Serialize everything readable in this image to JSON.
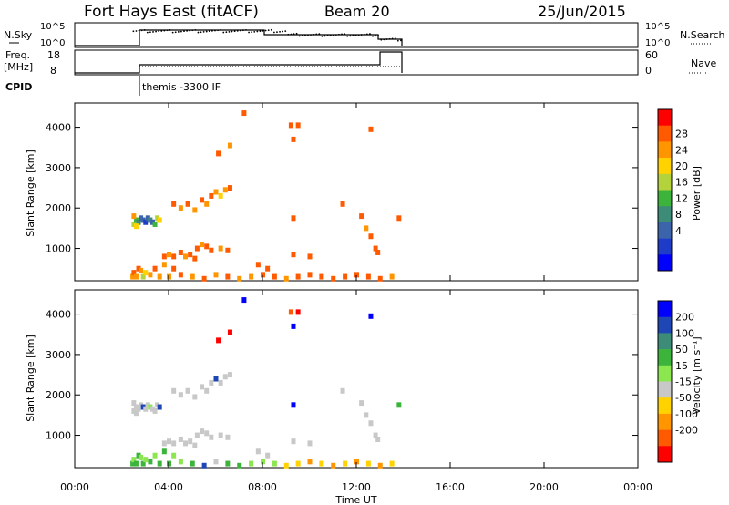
{
  "header": {
    "site": "Fort Hays East (fitACF)",
    "beam": "Beam 20",
    "date": "25/Jun/2015"
  },
  "params": {
    "nsky_label": "N.Sky",
    "nsky_ticks": [
      "10^5",
      "10^0"
    ],
    "nsearch_label": "N.Search",
    "nsearch_ticks": [
      "10^5",
      "10^0"
    ],
    "freq_label": [
      "Freq.",
      "[MHz]"
    ],
    "freq_ticks": [
      "18",
      "8"
    ],
    "nave_label": "Nave",
    "nave_ticks": [
      "60",
      "0"
    ],
    "cpid_label": "CPID",
    "cpid_text": "themis -3300 IF"
  },
  "chart_data": [
    {
      "type": "heatmap",
      "name": "power",
      "ylabel": "Slant Range [km]",
      "xlabel": "",
      "xlim": [
        0,
        24
      ],
      "ylim": [
        200,
        4600
      ],
      "y_ticks": [
        1000,
        2000,
        3000,
        4000
      ],
      "colorbar": {
        "label": "Power [dB]",
        "ticks": [
          "28",
          "24",
          "20",
          "16",
          "12",
          "8",
          "4"
        ],
        "colors": [
          "#ff0000",
          "#ff5a00",
          "#ff9600",
          "#ffd200",
          "#b4d23c",
          "#3cb43c",
          "#3c8c78",
          "#3c64aa",
          "#1e3cc8",
          "#0000ff"
        ]
      },
      "cells": [
        [
          2.45,
          300,
          2
        ],
        [
          2.5,
          400,
          1
        ],
        [
          2.6,
          300,
          2
        ],
        [
          2.7,
          500,
          1
        ],
        [
          2.8,
          450,
          2
        ],
        [
          2.9,
          300,
          4
        ],
        [
          3.0,
          400,
          3
        ],
        [
          3.2,
          350,
          2
        ],
        [
          3.4,
          500,
          1
        ],
        [
          3.6,
          300,
          2
        ],
        [
          2.5,
          1600,
          4
        ],
        [
          2.6,
          1700,
          5
        ],
        [
          2.7,
          1650,
          6
        ],
        [
          2.8,
          1750,
          7
        ],
        [
          2.9,
          1700,
          7
        ],
        [
          3.0,
          1650,
          8
        ],
        [
          3.1,
          1750,
          7
        ],
        [
          3.2,
          1700,
          6
        ],
        [
          3.3,
          1650,
          7
        ],
        [
          3.4,
          1600,
          5
        ],
        [
          3.5,
          1750,
          4
        ],
        [
          3.6,
          1700,
          3
        ],
        [
          2.6,
          1550,
          3
        ],
        [
          2.5,
          1800,
          2
        ],
        [
          3.8,
          800,
          1
        ],
        [
          4.0,
          850,
          2
        ],
        [
          4.2,
          800,
          1
        ],
        [
          4.5,
          900,
          1
        ],
        [
          4.7,
          800,
          2
        ],
        [
          4.9,
          850,
          1
        ],
        [
          5.1,
          750,
          1
        ],
        [
          3.8,
          600,
          2
        ],
        [
          4.2,
          500,
          1
        ],
        [
          4.2,
          2100,
          1
        ],
        [
          4.5,
          2000,
          2
        ],
        [
          4.8,
          2100,
          1
        ],
        [
          5.1,
          1950,
          2
        ],
        [
          5.4,
          2200,
          1
        ],
        [
          5.6,
          2100,
          2
        ],
        [
          5.8,
          2300,
          1
        ],
        [
          6.0,
          2400,
          2
        ],
        [
          6.2,
          2300,
          3
        ],
        [
          6.4,
          2450,
          2
        ],
        [
          6.6,
          2500,
          1
        ],
        [
          5.2,
          1000,
          1
        ],
        [
          5.4,
          1100,
          2
        ],
        [
          5.6,
          1050,
          1
        ],
        [
          5.8,
          950,
          1
        ],
        [
          6.2,
          1000,
          2
        ],
        [
          6.5,
          950,
          1
        ],
        [
          4.0,
          300,
          2
        ],
        [
          4.5,
          350,
          1
        ],
        [
          5.0,
          300,
          2
        ],
        [
          5.5,
          250,
          1
        ],
        [
          6.0,
          350,
          2
        ],
        [
          6.5,
          300,
          1
        ],
        [
          7.0,
          250,
          2
        ],
        [
          7.5,
          300,
          2
        ],
        [
          8.0,
          350,
          1
        ],
        [
          8.5,
          300,
          1
        ],
        [
          9.0,
          250,
          2
        ],
        [
          9.5,
          300,
          1
        ],
        [
          10.0,
          350,
          1
        ],
        [
          10.5,
          300,
          1
        ],
        [
          11.0,
          250,
          1
        ],
        [
          11.5,
          300,
          1
        ],
        [
          12.0,
          350,
          1
        ],
        [
          12.5,
          300,
          1
        ],
        [
          13.0,
          250,
          1
        ],
        [
          13.5,
          300,
          2
        ],
        [
          7.8,
          600,
          1
        ],
        [
          8.2,
          500,
          1
        ],
        [
          9.3,
          850,
          1
        ],
        [
          10.0,
          800,
          1
        ],
        [
          11.4,
          2100,
          1
        ],
        [
          12.2,
          1800,
          1
        ],
        [
          12.4,
          1500,
          2
        ],
        [
          12.6,
          1300,
          1
        ],
        [
          12.8,
          1000,
          1
        ],
        [
          12.9,
          900,
          1
        ],
        [
          13.8,
          1750,
          1
        ],
        [
          7.2,
          4350,
          1
        ],
        [
          9.2,
          4050,
          1
        ],
        [
          9.5,
          4050,
          1
        ],
        [
          9.3,
          3700,
          1
        ],
        [
          12.6,
          3950,
          1
        ],
        [
          6.1,
          3350,
          1
        ],
        [
          6.6,
          3550,
          2
        ],
        [
          9.3,
          1750,
          1
        ]
      ]
    },
    {
      "type": "heatmap",
      "name": "velocity",
      "ylabel": "Slant Range [km]",
      "xlabel": "Time UT",
      "xlim": [
        0,
        24
      ],
      "ylim": [
        200,
        4600
      ],
      "x_ticks": [
        "00:00",
        "04:00",
        "08:00",
        "12:00",
        "16:00",
        "20:00",
        "00:00"
      ],
      "y_ticks": [
        1000,
        2000,
        3000,
        4000
      ],
      "colorbar": {
        "label": "Velocity [m s⁻¹]",
        "ticks": [
          "200",
          "100",
          "50",
          "15",
          "-15",
          "-50",
          "-100",
          "-200"
        ],
        "colors": [
          "#0000ff",
          "#1e46b4",
          "#3c8c78",
          "#3cb43c",
          "#8ce650",
          "#c8c8c8",
          "#ffd200",
          "#ff9600",
          "#ff5a00",
          "#ff0000"
        ]
      },
      "cells": [
        [
          2.45,
          300,
          3
        ],
        [
          2.5,
          400,
          4
        ],
        [
          2.6,
          300,
          3
        ],
        [
          2.7,
          500,
          3
        ],
        [
          2.8,
          450,
          4
        ],
        [
          2.9,
          300,
          3
        ],
        [
          3.0,
          400,
          4
        ],
        [
          3.2,
          350,
          3
        ],
        [
          3.4,
          500,
          4
        ],
        [
          3.6,
          300,
          3
        ],
        [
          2.5,
          1600,
          5
        ],
        [
          2.6,
          1700,
          5
        ],
        [
          2.7,
          1650,
          5
        ],
        [
          2.8,
          1750,
          5
        ],
        [
          2.9,
          1700,
          1
        ],
        [
          3.0,
          1650,
          5
        ],
        [
          3.1,
          1750,
          5
        ],
        [
          3.2,
          1700,
          4
        ],
        [
          3.3,
          1650,
          5
        ],
        [
          3.4,
          1600,
          5
        ],
        [
          3.5,
          1750,
          5
        ],
        [
          3.6,
          1700,
          1
        ],
        [
          2.6,
          1550,
          5
        ],
        [
          2.5,
          1800,
          5
        ],
        [
          3.8,
          800,
          5
        ],
        [
          4.0,
          850,
          5
        ],
        [
          4.2,
          800,
          5
        ],
        [
          4.5,
          900,
          5
        ],
        [
          4.7,
          800,
          5
        ],
        [
          4.9,
          850,
          5
        ],
        [
          5.1,
          750,
          5
        ],
        [
          3.8,
          600,
          3
        ],
        [
          4.2,
          500,
          4
        ],
        [
          4.2,
          2100,
          5
        ],
        [
          4.5,
          2000,
          5
        ],
        [
          4.8,
          2100,
          5
        ],
        [
          5.1,
          1950,
          5
        ],
        [
          5.4,
          2200,
          5
        ],
        [
          5.6,
          2100,
          5
        ],
        [
          5.8,
          2300,
          5
        ],
        [
          6.0,
          2400,
          1
        ],
        [
          6.2,
          2300,
          5
        ],
        [
          6.4,
          2450,
          5
        ],
        [
          6.6,
          2500,
          5
        ],
        [
          5.2,
          1000,
          5
        ],
        [
          5.4,
          1100,
          5
        ],
        [
          5.6,
          1050,
          5
        ],
        [
          5.8,
          950,
          5
        ],
        [
          6.2,
          1000,
          5
        ],
        [
          6.5,
          950,
          5
        ],
        [
          4.0,
          300,
          3
        ],
        [
          4.5,
          350,
          4
        ],
        [
          5.0,
          300,
          3
        ],
        [
          5.5,
          250,
          1
        ],
        [
          6.0,
          350,
          5
        ],
        [
          6.5,
          300,
          3
        ],
        [
          7.0,
          250,
          3
        ],
        [
          7.5,
          300,
          4
        ],
        [
          8.0,
          350,
          4
        ],
        [
          8.5,
          300,
          4
        ],
        [
          9.0,
          250,
          6
        ],
        [
          9.5,
          300,
          6
        ],
        [
          10.0,
          350,
          7
        ],
        [
          10.5,
          300,
          6
        ],
        [
          11.0,
          250,
          7
        ],
        [
          11.5,
          300,
          6
        ],
        [
          12.0,
          350,
          7
        ],
        [
          12.5,
          300,
          6
        ],
        [
          13.0,
          250,
          7
        ],
        [
          13.5,
          300,
          6
        ],
        [
          7.8,
          600,
          5
        ],
        [
          8.2,
          500,
          5
        ],
        [
          9.3,
          850,
          5
        ],
        [
          10.0,
          800,
          5
        ],
        [
          11.4,
          2100,
          5
        ],
        [
          12.2,
          1800,
          5
        ],
        [
          12.4,
          1500,
          5
        ],
        [
          12.6,
          1300,
          5
        ],
        [
          12.8,
          1000,
          5
        ],
        [
          12.9,
          900,
          5
        ],
        [
          13.8,
          1750,
          3
        ],
        [
          7.2,
          4350,
          0
        ],
        [
          9.2,
          4050,
          8
        ],
        [
          9.5,
          4050,
          9
        ],
        [
          9.3,
          3700,
          0
        ],
        [
          12.6,
          3950,
          0
        ],
        [
          6.1,
          3350,
          9
        ],
        [
          6.6,
          3550,
          9
        ],
        [
          9.3,
          1750,
          0
        ]
      ]
    }
  ]
}
